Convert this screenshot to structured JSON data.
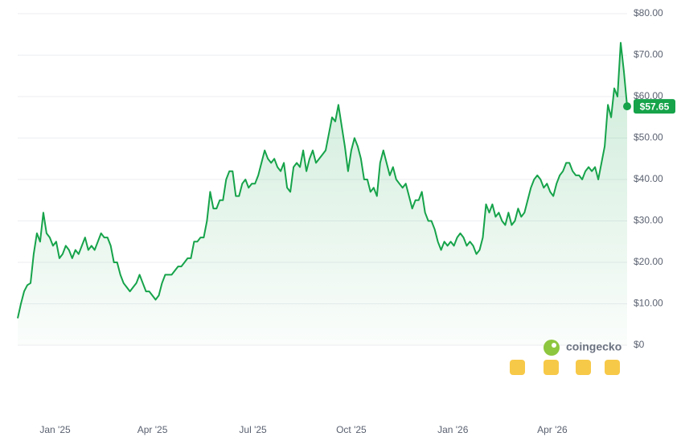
{
  "chart_data": {
    "type": "line",
    "color": "#16a34a",
    "ylim": [
      0,
      80
    ],
    "yticks": [
      {
        "value": 0,
        "label": "$0"
      },
      {
        "value": 10,
        "label": "$10.00"
      },
      {
        "value": 20,
        "label": "$20.00"
      },
      {
        "value": 30,
        "label": "$30.00"
      },
      {
        "value": 40,
        "label": "$40.00"
      },
      {
        "value": 50,
        "label": "$50.00"
      },
      {
        "value": 60,
        "label": "$60.00"
      },
      {
        "value": 70,
        "label": "$70.00"
      },
      {
        "value": 80,
        "label": "$80.00"
      }
    ],
    "xlim": [
      0,
      570
    ],
    "xticks": [
      {
        "value": 35,
        "label": "Jan '25"
      },
      {
        "value": 126,
        "label": "Apr '25"
      },
      {
        "value": 220,
        "label": "Jul '25"
      },
      {
        "value": 312,
        "label": "Oct '25"
      },
      {
        "value": 407,
        "label": "Jan '26"
      },
      {
        "value": 500,
        "label": "Apr '26"
      }
    ],
    "grid": true,
    "price_label": "$57.65",
    "watermark": "coingecko",
    "x": [
      0,
      3,
      6,
      9,
      12,
      15,
      18,
      21,
      24,
      27,
      30,
      33,
      36,
      39,
      42,
      45,
      48,
      51,
      54,
      57,
      60,
      63,
      66,
      69,
      72,
      75,
      78,
      81,
      84,
      87,
      90,
      93,
      96,
      99,
      102,
      105,
      108,
      111,
      114,
      117,
      120,
      123,
      126,
      129,
      132,
      135,
      138,
      141,
      144,
      147,
      150,
      153,
      156,
      159,
      162,
      165,
      168,
      171,
      174,
      177,
      180,
      183,
      186,
      189,
      192,
      195,
      198,
      201,
      204,
      207,
      210,
      213,
      216,
      219,
      222,
      225,
      228,
      231,
      234,
      237,
      240,
      243,
      246,
      249,
      252,
      255,
      258,
      261,
      264,
      267,
      270,
      273,
      276,
      279,
      282,
      285,
      288,
      291,
      294,
      297,
      300,
      303,
      306,
      309,
      312,
      315,
      318,
      321,
      324,
      327,
      330,
      333,
      336,
      339,
      342,
      345,
      348,
      351,
      354,
      357,
      360,
      363,
      366,
      369,
      372,
      375,
      378,
      381,
      384,
      387,
      390,
      393,
      396,
      399,
      402,
      405,
      408,
      411,
      414,
      417,
      420,
      423,
      426,
      429,
      432,
      435,
      438,
      441,
      444,
      447,
      450,
      453,
      456,
      459,
      462,
      465,
      468,
      471,
      474,
      477,
      480,
      483,
      486,
      489,
      492,
      495,
      498,
      501,
      504,
      507,
      510,
      513,
      516,
      519,
      522,
      525,
      528,
      531,
      534,
      537,
      540,
      543,
      546,
      549,
      552,
      555,
      558,
      561,
      564,
      567,
      570
    ],
    "values": [
      6.5,
      10,
      13,
      14.5,
      15,
      22,
      27,
      25,
      32,
      27,
      26,
      24,
      25,
      21,
      22,
      24,
      23,
      21,
      23,
      22,
      24,
      26,
      23,
      24,
      23,
      25,
      27,
      26,
      26,
      24,
      20,
      20,
      17,
      15,
      14,
      13,
      14,
      15,
      17,
      15,
      13,
      13,
      12,
      11,
      12,
      15,
      17,
      17,
      17,
      18,
      19,
      19,
      20,
      21,
      21,
      25,
      25,
      26,
      26,
      30,
      37,
      33,
      33,
      35,
      35,
      40,
      42,
      42,
      36,
      36,
      39,
      40,
      38,
      39,
      39,
      41,
      44,
      47,
      45,
      44,
      45,
      43,
      42,
      44,
      38,
      37,
      43,
      44,
      43,
      47,
      42,
      45,
      47,
      44,
      45,
      46,
      47,
      51,
      55,
      54,
      58,
      53,
      48,
      42,
      47,
      50,
      48,
      45,
      40,
      40,
      37,
      38,
      36,
      44,
      47,
      44,
      41,
      43,
      40,
      39,
      38,
      39,
      36,
      33,
      35,
      35,
      37,
      32,
      30,
      30,
      28,
      25,
      23,
      25,
      24,
      25,
      24,
      26,
      27,
      26,
      24,
      25,
      24,
      22,
      23,
      26,
      34,
      32,
      34,
      31,
      32,
      30,
      29,
      32,
      29,
      30,
      33,
      31,
      32,
      35,
      38,
      40,
      41,
      40,
      38,
      39,
      37,
      36,
      39,
      41,
      42,
      44,
      44,
      42,
      41,
      41,
      40,
      42,
      43,
      42,
      43,
      40,
      44,
      48,
      58,
      55,
      62,
      60,
      73,
      66,
      57.65
    ]
  }
}
